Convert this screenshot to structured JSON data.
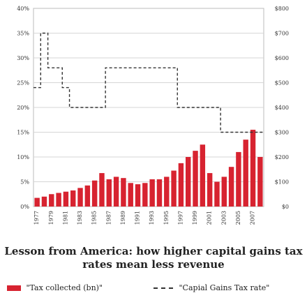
{
  "chart_data": {
    "type": "bar",
    "title": "Lesson from America: how higher capital gains tax rates mean less revenue",
    "x_start": 1977,
    "x_end": 2008,
    "x_tick_labels": [
      "1977",
      "1979",
      "1981",
      "1983",
      "1985",
      "1987",
      "1989",
      "1991",
      "1993",
      "1995",
      "1997",
      "1999",
      "2001",
      "2003",
      "2005",
      "2007"
    ],
    "left_axis": {
      "ylim": [
        0,
        40
      ],
      "tick_labels": [
        "0%",
        "5%",
        "10%",
        "15%",
        "20%",
        "25%",
        "30%",
        "35%",
        "40%"
      ]
    },
    "right_axis": {
      "ylim": [
        0,
        800
      ],
      "tick_labels": [
        "$0",
        "$100",
        "$200",
        "$300",
        "$400",
        "$500",
        "$600",
        "$700",
        "$800"
      ]
    },
    "series": [
      {
        "name": "\"Tax collected (bn)\"",
        "type": "bar",
        "axis": "right",
        "color": "#d72330",
        "x": [
          1977,
          1978,
          1979,
          1980,
          1981,
          1982,
          1983,
          1984,
          1985,
          1986,
          1987,
          1988,
          1989,
          1990,
          1991,
          1992,
          1993,
          1994,
          1995,
          1996,
          1997,
          1998,
          1999,
          2000,
          2001,
          2002,
          2003,
          2004,
          2005,
          2006,
          2007,
          2008
        ],
        "values": [
          35,
          40,
          50,
          55,
          60,
          65,
          75,
          85,
          105,
          135,
          110,
          120,
          115,
          95,
          90,
          95,
          110,
          110,
          120,
          145,
          175,
          200,
          225,
          250,
          135,
          100,
          120,
          160,
          220,
          270,
          310,
          200
        ]
      },
      {
        "name": "\"Capial Gains Tax rate\"",
        "type": "line-dashed",
        "axis": "left",
        "color": "#333333",
        "x": [
          1977,
          1978,
          1979,
          1980,
          1981,
          1982,
          1983,
          1984,
          1985,
          1986,
          1987,
          1988,
          1989,
          1990,
          1991,
          1992,
          1993,
          1994,
          1995,
          1996,
          1997,
          1998,
          1999,
          2000,
          2001,
          2002,
          2003,
          2004,
          2005,
          2006,
          2007,
          2008
        ],
        "values": [
          24,
          35,
          28,
          28,
          24,
          20,
          20,
          20,
          20,
          20,
          28,
          28,
          28,
          28,
          28,
          28,
          28,
          28,
          28,
          28,
          20,
          20,
          20,
          20,
          20,
          20,
          15,
          15,
          15,
          15,
          15,
          15
        ]
      }
    ]
  },
  "legend": {
    "bar_label": "\"Tax collected (bn)\"",
    "line_label": "\"Capial Gains Tax rate\""
  }
}
